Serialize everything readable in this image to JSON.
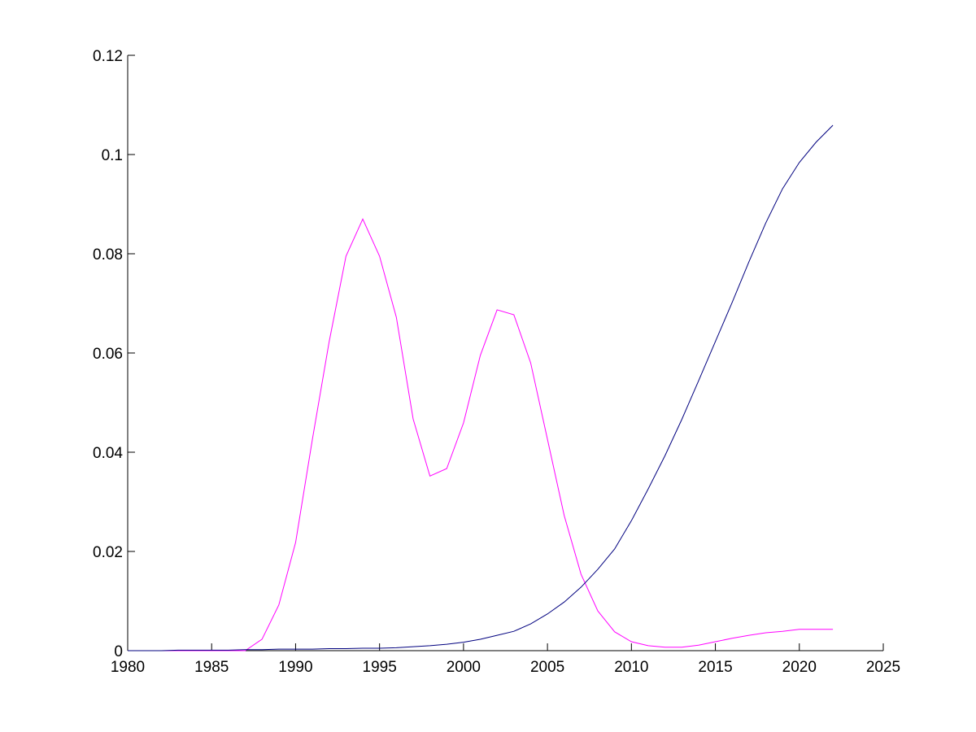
{
  "chart_data": {
    "type": "line",
    "x": [
      1980,
      1981,
      1982,
      1983,
      1984,
      1985,
      1986,
      1987,
      1988,
      1989,
      1990,
      1991,
      1992,
      1993,
      1994,
      1995,
      1996,
      1997,
      1998,
      1999,
      2000,
      2001,
      2002,
      2003,
      2004,
      2005,
      2006,
      2007,
      2008,
      2009,
      2010,
      2011,
      2012,
      2013,
      2014,
      2015,
      2016,
      2017,
      2018,
      2019,
      2020,
      2021,
      2022
    ],
    "series": [
      {
        "color": "#ff00ff",
        "values": [
          0,
          0,
          0,
          0,
          0,
          0,
          0,
          0,
          0.0023,
          0.0092,
          0.0218,
          0.0426,
          0.0623,
          0.0795,
          0.087,
          0.0795,
          0.0672,
          0.0467,
          0.0352,
          0.0367,
          0.0459,
          0.0595,
          0.0687,
          0.0677,
          0.058,
          0.0426,
          0.0272,
          0.0154,
          0.008,
          0.0038,
          0.0018,
          0.001,
          0.0007,
          0.0007,
          0.0011,
          0.0018,
          0.0025,
          0.0031,
          0.0036,
          0.0039,
          0.0043,
          0.0043,
          0.0043
        ]
      },
      {
        "color": "#00007f",
        "values": [
          0,
          0,
          0,
          0.0001,
          0.0001,
          0.0001,
          0.0001,
          0.0002,
          0.0002,
          0.0003,
          0.0003,
          0.0003,
          0.0004,
          0.0004,
          0.0005,
          0.0005,
          0.0006,
          0.0008,
          0.001,
          0.0013,
          0.0017,
          0.0023,
          0.0031,
          0.0039,
          0.0054,
          0.0074,
          0.0098,
          0.0128,
          0.0164,
          0.0205,
          0.0262,
          0.0326,
          0.0393,
          0.0466,
          0.0544,
          0.0623,
          0.0702,
          0.0784,
          0.0862,
          0.0931,
          0.0984,
          0.1025,
          0.1059
        ]
      }
    ],
    "xlim": [
      1980,
      2025
    ],
    "xticks": [
      1980,
      1985,
      1990,
      1995,
      2000,
      2005,
      2010,
      2015,
      2020,
      2025
    ],
    "ylim": [
      0,
      0.12
    ],
    "yticks": [
      0,
      0.02,
      0.04,
      0.06,
      0.08,
      0.1,
      0.12
    ]
  }
}
